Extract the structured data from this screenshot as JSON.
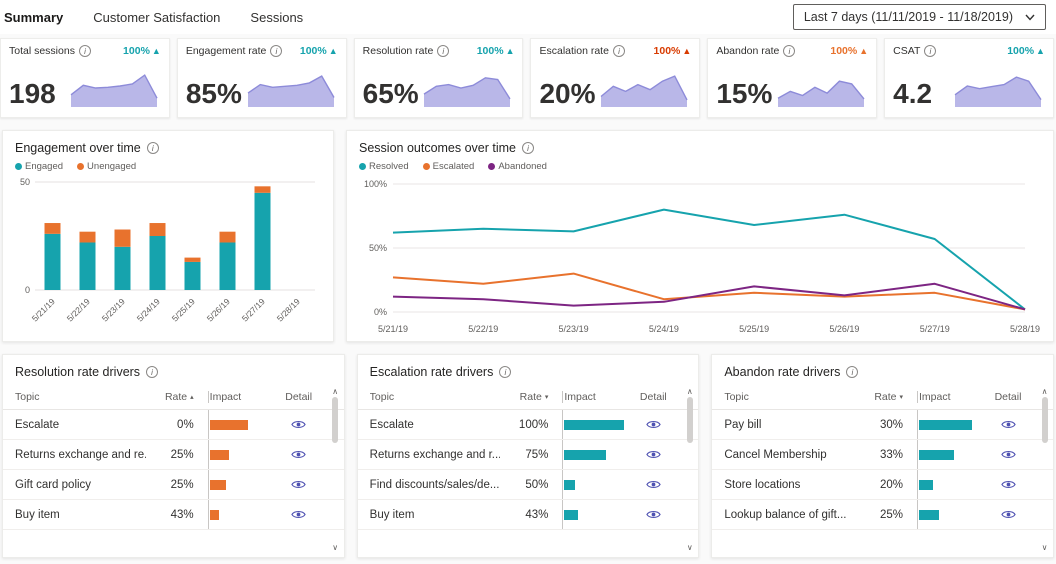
{
  "tabs": [
    {
      "label": "Summary",
      "selected": true
    },
    {
      "label": "Customer Satisfaction",
      "selected": false
    },
    {
      "label": "Sessions",
      "selected": false
    }
  ],
  "date_filter": {
    "label": "Last 7 days (11/11/2019 - 11/18/2019)"
  },
  "colors": {
    "teal": "#16a3ad",
    "orange": "#e8722d",
    "purple": "#7d2583",
    "bad_red": "#d83b01",
    "spark_fill": "#b9b7e8",
    "spark_stroke": "#8d8bd9"
  },
  "kpis": [
    {
      "label": "Total sessions",
      "value": "198",
      "trend": "100%",
      "trend_dir": "up",
      "trend_color": "#16a3ad",
      "spark": [
        30,
        58,
        50,
        52,
        56,
        62,
        88,
        20
      ]
    },
    {
      "label": "Engagement rate",
      "value": "85%",
      "trend": "100%",
      "trend_dir": "up",
      "trend_color": "#16a3ad",
      "spark": [
        35,
        60,
        52,
        55,
        58,
        65,
        85,
        22
      ]
    },
    {
      "label": "Resolution rate",
      "value": "65%",
      "trend": "100%",
      "trend_dir": "up",
      "trend_color": "#16a3ad",
      "spark": [
        32,
        55,
        60,
        50,
        58,
        80,
        75,
        18
      ]
    },
    {
      "label": "Escalation rate",
      "value": "20%",
      "trend": "100%",
      "trend_dir": "up",
      "trend_color": "#d83b01",
      "spark": [
        25,
        55,
        40,
        60,
        45,
        70,
        85,
        15
      ]
    },
    {
      "label": "Abandon rate",
      "value": "15%",
      "trend": "100%",
      "trend_dir": "up",
      "trend_color": "#e8722d",
      "spark": [
        20,
        40,
        28,
        52,
        35,
        70,
        62,
        18
      ]
    },
    {
      "label": "CSAT",
      "value": "4.2",
      "trend": "100%",
      "trend_dir": "up",
      "trend_color": "#16a3ad",
      "spark": [
        30,
        56,
        48,
        54,
        60,
        82,
        70,
        16
      ]
    }
  ],
  "chart_data": [
    {
      "type": "bar",
      "stacked": true,
      "title": "Engagement over time",
      "categories": [
        "5/21/19",
        "5/22/19",
        "5/23/19",
        "5/24/19",
        "5/25/19",
        "5/26/19",
        "5/27/19",
        "5/28/19"
      ],
      "series": [
        {
          "name": "Engaged",
          "color": "#16a3ad",
          "values": [
            26,
            22,
            20,
            25,
            13,
            22,
            45,
            0
          ]
        },
        {
          "name": "Unengaged",
          "color": "#e8722d",
          "values": [
            5,
            5,
            8,
            6,
            2,
            5,
            3,
            0
          ]
        }
      ],
      "ylim": [
        0,
        50
      ],
      "yticks": [
        0,
        50
      ],
      "ytick_labels": [
        "0",
        "50"
      ],
      "grid": true,
      "legend_position": "top"
    },
    {
      "type": "line",
      "title": "Session outcomes over time",
      "x": [
        "5/21/19",
        "5/22/19",
        "5/23/19",
        "5/24/19",
        "5/25/19",
        "5/26/19",
        "5/27/19",
        "5/28/19"
      ],
      "series": [
        {
          "name": "Resolved",
          "color": "#16a3ad",
          "values": [
            62,
            65,
            63,
            80,
            68,
            76,
            57,
            2
          ]
        },
        {
          "name": "Escalated",
          "color": "#e8722d",
          "values": [
            27,
            22,
            30,
            10,
            15,
            12,
            15,
            2
          ]
        },
        {
          "name": "Abandoned",
          "color": "#7d2583",
          "values": [
            12,
            10,
            5,
            8,
            20,
            13,
            22,
            2
          ]
        }
      ],
      "ylim": [
        0,
        100
      ],
      "yticks": [
        0,
        50,
        100
      ],
      "ytick_labels": [
        "0%",
        "50%",
        "100%"
      ],
      "grid": true,
      "legend_position": "top"
    }
  ],
  "tables": [
    {
      "title": "Resolution rate drivers",
      "columns": [
        "Topic",
        "Rate",
        "Impact",
        "Detail"
      ],
      "sort_col": "Rate",
      "sort_dir": "asc",
      "bar_color": "#e8722d",
      "rows": [
        {
          "topic": "Escalate",
          "rate": "0%",
          "impact": 55
        },
        {
          "topic": "Returns exchange and re...",
          "rate": "25%",
          "impact": 27
        },
        {
          "topic": "Gift card policy",
          "rate": "25%",
          "impact": 24
        },
        {
          "topic": "Buy item",
          "rate": "43%",
          "impact": 14
        }
      ]
    },
    {
      "title": "Escalation rate drivers",
      "columns": [
        "Topic",
        "Rate",
        "Impact",
        "Detail"
      ],
      "sort_col": "Rate",
      "sort_dir": "desc",
      "bar_color": "#16a3ad",
      "rows": [
        {
          "topic": "Escalate",
          "rate": "100%",
          "impact": 85
        },
        {
          "topic": "Returns exchange and r...",
          "rate": "75%",
          "impact": 60
        },
        {
          "topic": "Find discounts/sales/de...",
          "rate": "50%",
          "impact": 15
        },
        {
          "topic": "Buy item",
          "rate": "43%",
          "impact": 20
        }
      ]
    },
    {
      "title": "Abandon rate drivers",
      "columns": [
        "Topic",
        "Rate",
        "Impact",
        "Detail"
      ],
      "sort_col": "Rate",
      "sort_dir": "desc",
      "bar_color": "#16a3ad",
      "rows": [
        {
          "topic": "Pay bill",
          "rate": "30%",
          "impact": 75
        },
        {
          "topic": "Cancel Membership",
          "rate": "33%",
          "impact": 50
        },
        {
          "topic": "Store locations",
          "rate": "20%",
          "impact": 20
        },
        {
          "topic": "Lookup balance of gift...",
          "rate": "25%",
          "impact": 28
        }
      ]
    }
  ],
  "scrollbar": {
    "up_glyph": "∧",
    "down_glyph": "∨"
  }
}
